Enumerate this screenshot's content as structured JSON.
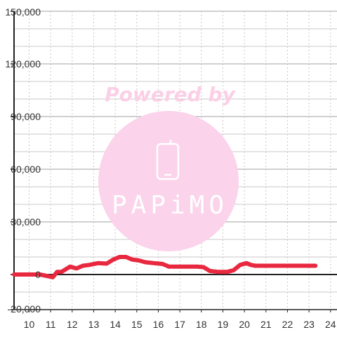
{
  "watermark": {
    "line1": "Powered by",
    "brand": "PAPiMO",
    "text_color": "#fbcfe6",
    "circle_color": "#fbd3ea",
    "brand_color": "#ffffff",
    "icon": "phone-icon"
  },
  "colors": {
    "series": "#e8283f",
    "grid_h": "#c8c8c8",
    "grid_v": "#c8c8c8",
    "axis": "#222222",
    "label": "#333333"
  },
  "chart_data": {
    "type": "line",
    "title": "",
    "xlabel": "",
    "ylabel": "",
    "xlim": [
      9.3,
      24.3
    ],
    "ylim": [
      -20000,
      150000
    ],
    "x_ticks": [
      10,
      11,
      12,
      13,
      14,
      15,
      16,
      17,
      18,
      19,
      20,
      21,
      22,
      23,
      24
    ],
    "y_ticks": [
      -20000,
      0,
      30000,
      60000,
      90000,
      120000,
      150000
    ],
    "x_tick_labels": [
      "10",
      "11",
      "12",
      "13",
      "14",
      "15",
      "16",
      "17",
      "18",
      "19",
      "20",
      "21",
      "22",
      "23",
      "24"
    ],
    "y_tick_labels": [
      "-20,000",
      "0",
      "30,000",
      "60,000",
      "90,000",
      "120,000",
      "150,000"
    ],
    "grid": {
      "horizontal": true,
      "vertical": true,
      "vertical_style": "dotted",
      "minor_horizontal_step": 10000
    },
    "legend": "none",
    "series": [
      {
        "color": "#e8283f",
        "x": [
          9.3,
          10.5,
          10.9,
          11.1,
          11.3,
          11.5,
          11.9,
          12.2,
          12.5,
          12.8,
          13.2,
          13.6,
          13.9,
          14.2,
          14.5,
          14.8,
          15.1,
          15.4,
          15.8,
          16.2,
          16.5,
          16.8,
          17.2,
          17.5,
          17.8,
          18.1,
          18.4,
          18.8,
          19.2,
          19.5,
          19.8,
          20.1,
          20.3,
          20.5,
          20.8,
          21.2,
          21.5,
          22,
          22.5,
          23,
          23.3
        ],
        "y": [
          0,
          0,
          -1000,
          -1500,
          1500,
          1500,
          4500,
          3500,
          5000,
          5500,
          6500,
          6200,
          8500,
          10000,
          10000,
          8500,
          8000,
          7000,
          6500,
          6000,
          4500,
          4500,
          4500,
          4500,
          4500,
          4200,
          2000,
          1500,
          1500,
          2500,
          5500,
          6500,
          5500,
          5000,
          5000,
          5000,
          5000,
          5000,
          5000,
          5000,
          5000
        ]
      }
    ]
  }
}
